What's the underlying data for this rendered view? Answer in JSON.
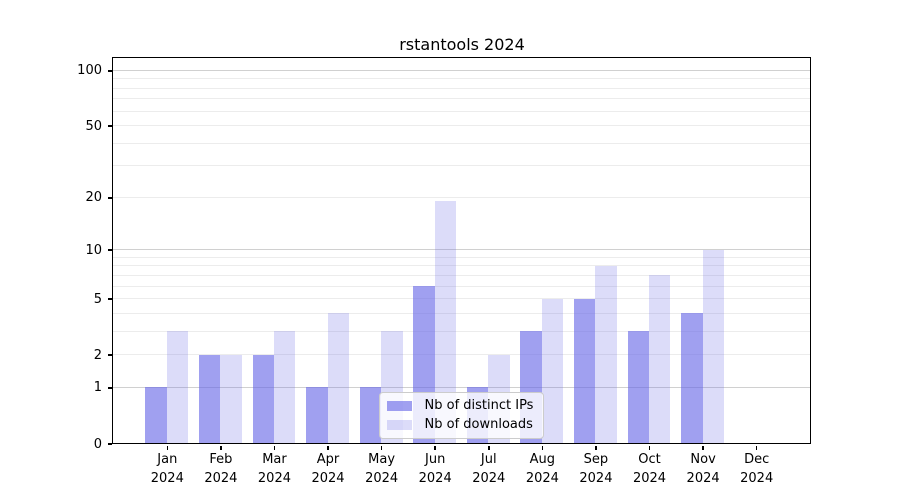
{
  "chart_data": {
    "type": "bar",
    "title": "rstantools 2024",
    "categories": [
      "Jan",
      "Feb",
      "Mar",
      "Apr",
      "May",
      "Jun",
      "Jul",
      "Aug",
      "Sep",
      "Oct",
      "Nov",
      "Dec"
    ],
    "x_year_label": "2024",
    "series": [
      {
        "name": "Nb of distinct IPs",
        "color": "rgba(102,102,230,0.62)",
        "values": [
          1,
          2,
          2,
          1,
          1,
          6,
          1,
          3,
          5,
          3,
          4,
          0
        ]
      },
      {
        "name": "Nb of downloads",
        "color": "rgba(102,102,230,0.23)",
        "values": [
          3,
          2,
          3,
          4,
          3,
          19,
          2,
          5,
          8,
          7,
          10,
          0
        ]
      }
    ],
    "yscale": "log10(1+x)",
    "ylim": [
      0,
      116
    ],
    "ytick_values": [
      0,
      1,
      2,
      5,
      10,
      20,
      50,
      100
    ],
    "ytick_labels": [
      "0",
      "1",
      "2",
      "5",
      "10",
      "20",
      "50",
      "100"
    ],
    "major_grid_values": [
      1,
      10,
      100
    ],
    "minor_grid_values": [
      2,
      3,
      4,
      5,
      6,
      7,
      8,
      9,
      20,
      30,
      40,
      50,
      60,
      70,
      80,
      90
    ],
    "grid": true,
    "legend_position": "lower center, inside plot",
    "colors": {
      "bar_distinct_ips_blend": "#a3a3ef",
      "bar_downloads_blend": "#dcdcf9",
      "major_grid": "#d0d0d0",
      "minor_grid": "#ececec",
      "axis": "#000000",
      "background": "#ffffff"
    }
  }
}
